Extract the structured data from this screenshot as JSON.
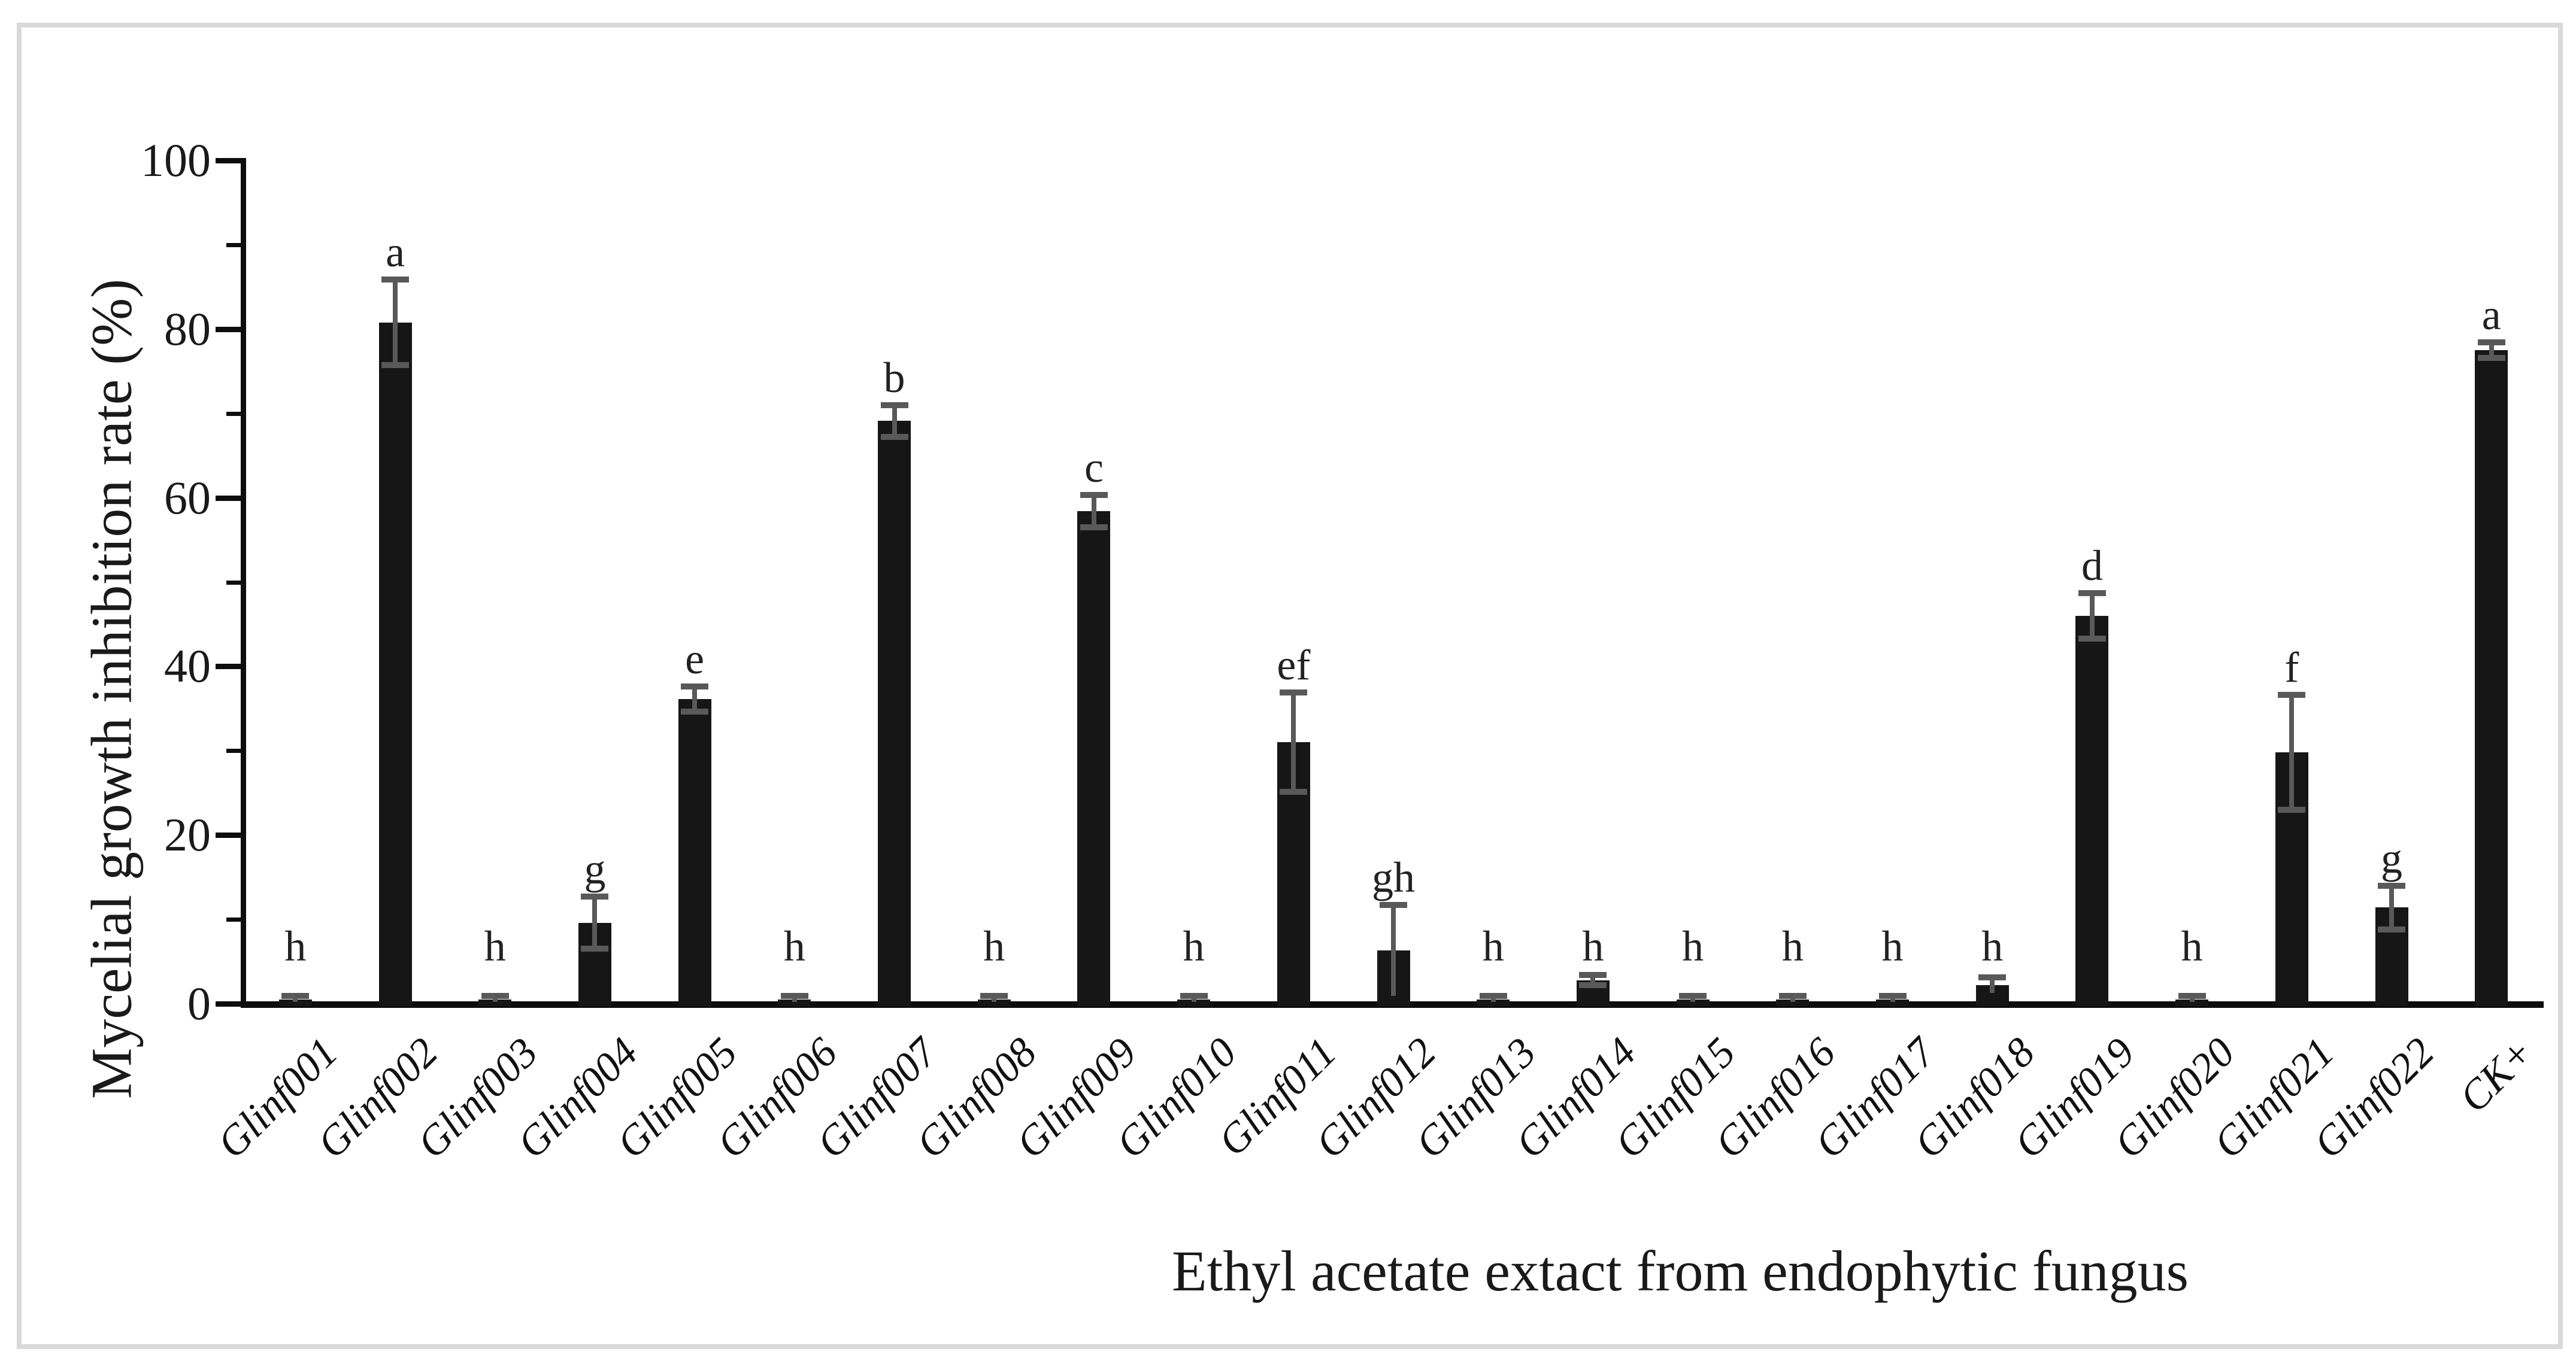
{
  "figure": {
    "frame_color": "#d9d9d9",
    "background": "#ffffff"
  },
  "chart_data": {
    "type": "bar",
    "title": "",
    "xlabel": "Ethyl acetate extact from endophytic fungus",
    "ylabel": "Mycelial growth inhibition rate (%)",
    "ylim": [
      0,
      100
    ],
    "ytick_major": [
      0,
      20,
      40,
      60,
      80,
      100
    ],
    "ytick_minor": [
      10,
      30,
      50,
      70,
      90
    ],
    "grid": false,
    "legend_position": "none",
    "bar_color": "#161616",
    "error_bar_color": "#595959",
    "axis_color": "#0d0d0d",
    "categories": [
      "Glinf001",
      "Glinf002",
      "Glinf003",
      "Glinf004",
      "Glinf005",
      "Glinf006",
      "Glinf007",
      "Glinf008",
      "Glinf009",
      "Glinf010",
      "Glinf011",
      "Glinf012",
      "Glinf013",
      "Glinf014",
      "Glinf015",
      "Glinf016",
      "Glinf017",
      "Glinf018",
      "Glinf019",
      "Glinf020",
      "Glinf021",
      "Glinf022",
      "CK+"
    ],
    "values": [
      0.5,
      80.8,
      0.5,
      9.6,
      36.1,
      0.5,
      69.1,
      0.5,
      58.4,
      0.5,
      31.0,
      6.3,
      0.5,
      2.8,
      0.5,
      0.5,
      0.5,
      2.2,
      46.0,
      0.5,
      29.8,
      11.4,
      77.5
    ],
    "errors": [
      0.4,
      5.1,
      0.4,
      3.1,
      1.5,
      0.4,
      1.9,
      0.4,
      1.9,
      0.4,
      5.9,
      5.4,
      0.4,
      0.6,
      0.4,
      0.4,
      0.4,
      0.9,
      2.7,
      0.4,
      6.8,
      2.6,
      0.9
    ],
    "sig_letters": [
      "h",
      "a",
      "h",
      "g",
      "e",
      "h",
      "b",
      "h",
      "c",
      "h",
      "ef",
      "gh",
      "h",
      "h",
      "h",
      "h",
      "h",
      "h",
      "d",
      "h",
      "f",
      "g",
      "a"
    ]
  }
}
